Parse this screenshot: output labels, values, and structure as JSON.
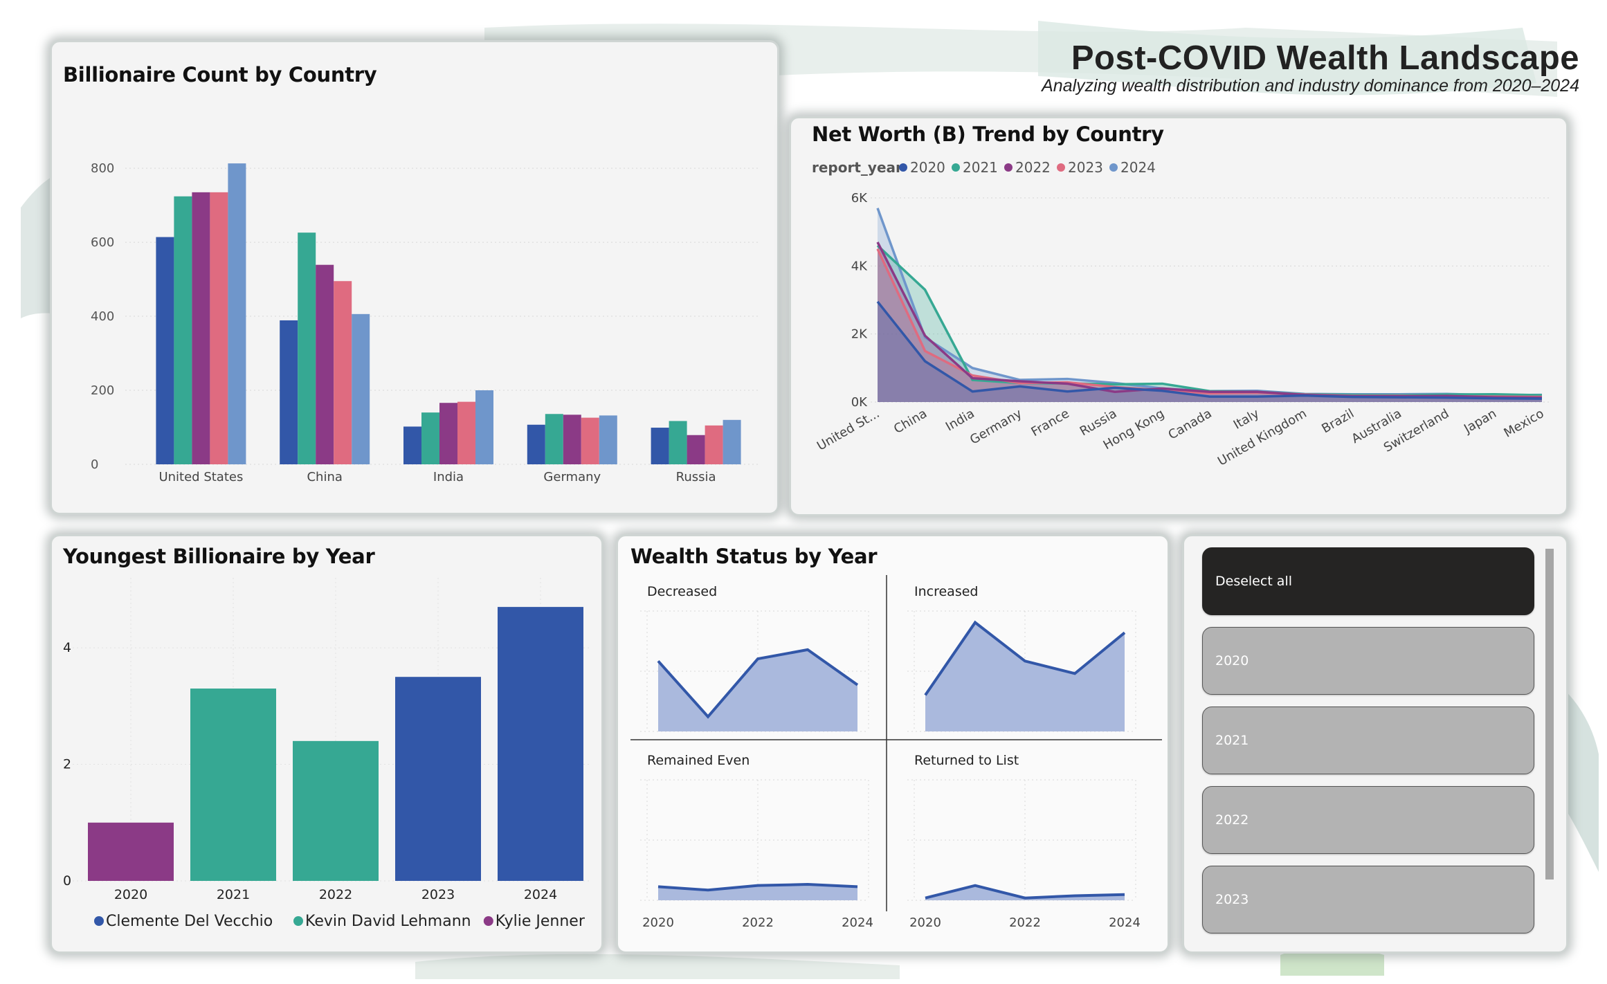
{
  "header": {
    "title": "Post-COVID Wealth Landscape",
    "subtitle": "Analyzing wealth distribution and industry dominance from 2020–2024"
  },
  "colors": {
    "y2020": "#3257a8",
    "y2021": "#36a893",
    "y2022": "#8b3a86",
    "y2023": "#df6b80",
    "y2024": "#6f96cb",
    "area_fill": "#aab9dd",
    "line": "#3257a8",
    "card_bg": "#f4f4f4"
  },
  "billionaire_count": {
    "title": "Billionaire Count by Country",
    "chart_data": {
      "type": "bar",
      "categories": [
        "United States",
        "China",
        "India",
        "Germany",
        "Russia"
      ],
      "series": [
        {
          "name": "2020",
          "values": [
            614,
            389,
            102,
            107,
            99
          ]
        },
        {
          "name": "2021",
          "values": [
            724,
            626,
            140,
            136,
            117
          ]
        },
        {
          "name": "2022",
          "values": [
            735,
            539,
            166,
            134,
            79
          ]
        },
        {
          "name": "2023",
          "values": [
            735,
            495,
            169,
            126,
            105
          ]
        },
        {
          "name": "2024",
          "values": [
            813,
            406,
            200,
            132,
            120
          ]
        }
      ],
      "yticks": [
        "0",
        "200",
        "400",
        "600",
        "800"
      ],
      "ylim": [
        0,
        860
      ],
      "grid": true
    }
  },
  "net_worth": {
    "title": "Net Worth (B) Trend by Country",
    "legend_title": "report_year",
    "chart_data": {
      "type": "area",
      "categories": [
        "United St...",
        "China",
        "India",
        "Germany",
        "France",
        "Russia",
        "Hong Kong",
        "Canada",
        "Italy",
        "United Kingdom",
        "Brazil",
        "Australia",
        "Switzerland",
        "Japan",
        "Mexico"
      ],
      "series": [
        {
          "name": "2020",
          "values": [
            2950,
            1200,
            310,
            460,
            310,
            420,
            330,
            160,
            160,
            190,
            150,
            140,
            130,
            110,
            100
          ]
        },
        {
          "name": "2021",
          "values": [
            4600,
            3300,
            650,
            560,
            550,
            520,
            540,
            320,
            300,
            230,
            210,
            200,
            220,
            230,
            200
          ]
        },
        {
          "name": "2022",
          "values": [
            4700,
            1950,
            700,
            610,
            540,
            300,
            400,
            300,
            300,
            210,
            170,
            170,
            180,
            140,
            130
          ]
        },
        {
          "name": "2023",
          "values": [
            4500,
            1500,
            780,
            560,
            580,
            440,
            350,
            260,
            280,
            220,
            180,
            180,
            170,
            160,
            150
          ]
        },
        {
          "name": "2024",
          "values": [
            5700,
            1900,
            1000,
            650,
            680,
            560,
            400,
            320,
            330,
            240,
            230,
            230,
            240,
            200,
            210
          ]
        }
      ],
      "yticks": [
        "0K",
        "2K",
        "4K",
        "6K"
      ],
      "ylim": [
        0,
        6000
      ],
      "legend": "top-left",
      "grid": true
    }
  },
  "youngest": {
    "title": "Youngest Billionaire by Year",
    "chart_data": {
      "type": "bar",
      "categories": [
        "2020",
        "2021",
        "2022",
        "2023",
        "2024"
      ],
      "values": [
        1,
        3.3,
        2.4,
        3.5,
        4.7
      ],
      "series_of_bar": [
        "Kylie Jenner",
        "Kevin David Lehmann",
        "Kevin David Lehmann",
        "Clemente Del Vecchio",
        "Clemente Del Vecchio"
      ],
      "yticks": [
        "0",
        "2",
        "4"
      ],
      "ylim": [
        0,
        5.2
      ],
      "legend": [
        "Clemente Del Vecchio",
        "Kevin David Lehmann",
        "Kylie Jenner"
      ]
    }
  },
  "wealth_status": {
    "title": "Wealth Status by Year",
    "chart_data": [
      {
        "type": "area",
        "name": "Decreased",
        "x": [
          "2020",
          "2021",
          "2022",
          "2023",
          "2024"
        ],
        "values": [
          0.62,
          0.13,
          0.64,
          0.72,
          0.41
        ]
      },
      {
        "type": "area",
        "name": "Increased",
        "x": [
          "2020",
          "2021",
          "2022",
          "2023",
          "2024"
        ],
        "values": [
          0.32,
          0.96,
          0.62,
          0.51,
          0.87
        ]
      },
      {
        "type": "area",
        "name": "Remained Even",
        "x": [
          "2020",
          "2021",
          "2022",
          "2023",
          "2024"
        ],
        "values": [
          0.12,
          0.09,
          0.13,
          0.14,
          0.12
        ]
      },
      {
        "type": "area",
        "name": "Returned to List",
        "x": [
          "2020",
          "2021",
          "2022",
          "2023",
          "2024"
        ],
        "values": [
          0.02,
          0.13,
          0.02,
          0.04,
          0.05
        ]
      }
    ],
    "xticks": [
      "2020",
      "2022",
      "2024"
    ]
  },
  "slicer": {
    "items": [
      {
        "label": "Deselect all",
        "selected": true
      },
      {
        "label": "2020",
        "selected": false
      },
      {
        "label": "2021",
        "selected": false
      },
      {
        "label": "2022",
        "selected": false
      },
      {
        "label": "2023",
        "selected": false
      }
    ]
  }
}
